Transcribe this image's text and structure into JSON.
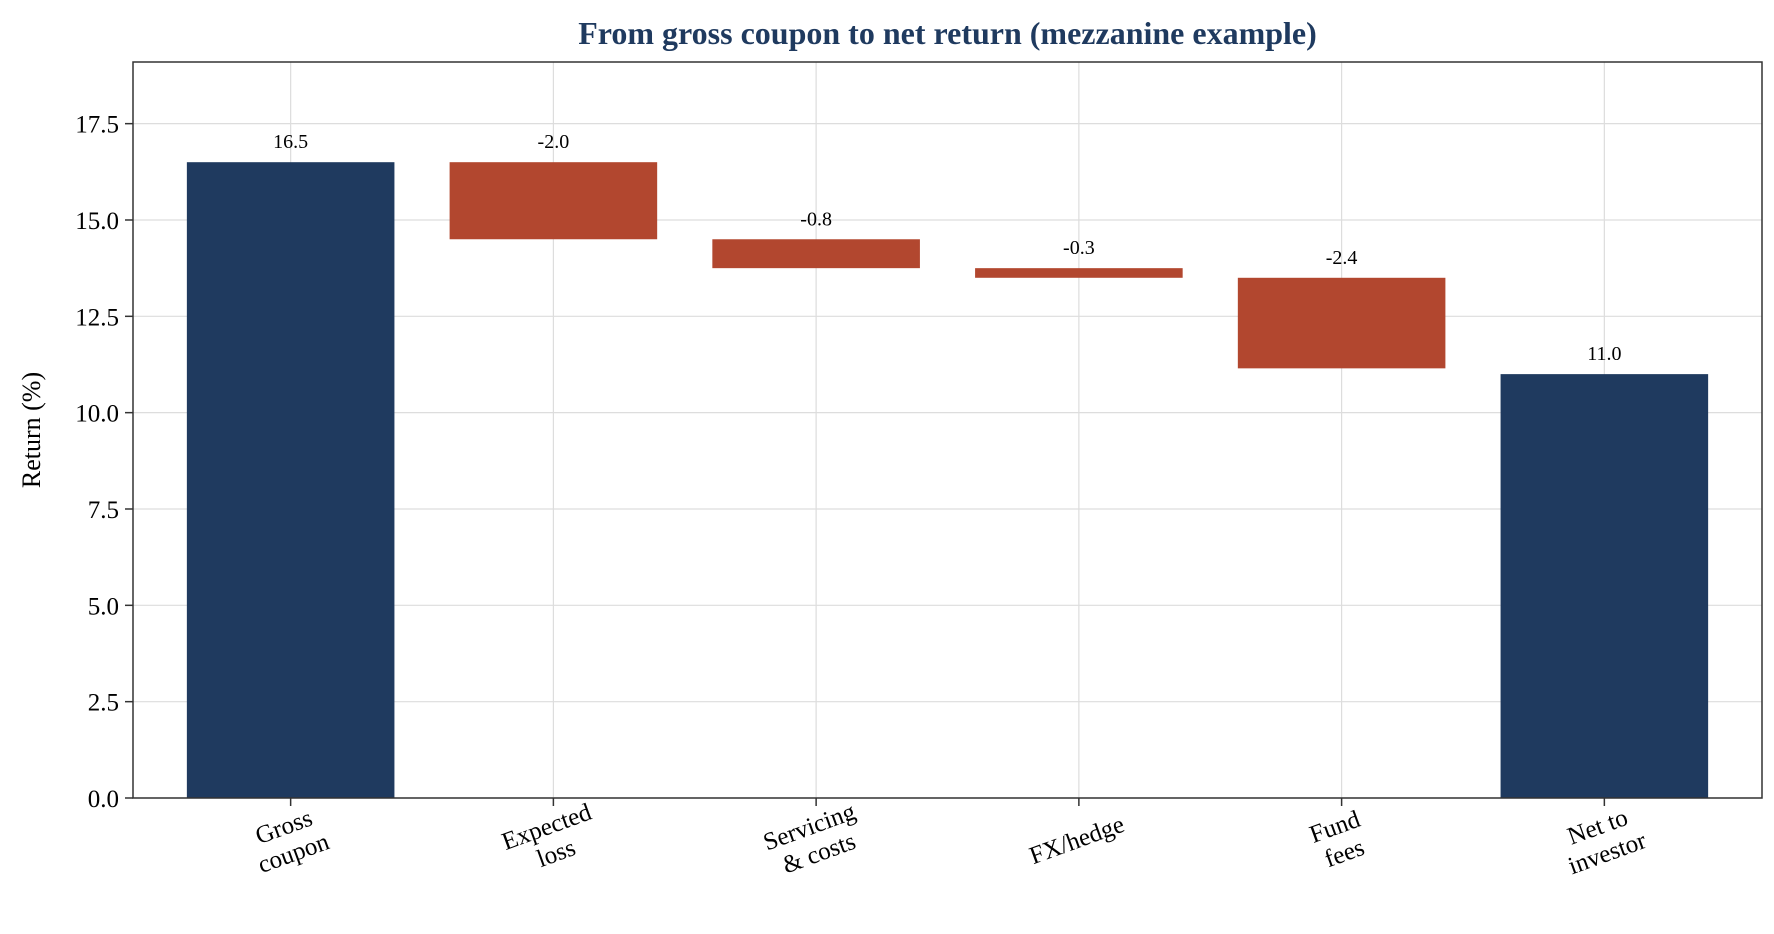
{
  "chart_data": {
    "type": "bar",
    "subtype": "waterfall",
    "title": "From gross coupon to net return (mezzanine example)",
    "xlabel": "",
    "ylabel": "Return (%)",
    "ylim": [
      0,
      19.1
    ],
    "yticks": [
      "0.0",
      "2.5",
      "5.0",
      "7.5",
      "10.0",
      "12.5",
      "15.0",
      "17.5"
    ],
    "grid": true,
    "categories": [
      [
        "Gross",
        "coupon"
      ],
      [
        "Expected",
        "loss"
      ],
      [
        "Servicing",
        "& costs"
      ],
      [
        "FX/hedge"
      ],
      [
        "Fund",
        "fees"
      ],
      [
        "Net to",
        "investor"
      ]
    ],
    "steps": [
      {
        "kind": "total",
        "value": 16.5,
        "label": "16.5"
      },
      {
        "kind": "delta",
        "value": -2.0,
        "label": "-2.0"
      },
      {
        "kind": "delta",
        "value": -0.75,
        "label": "-0.8"
      },
      {
        "kind": "delta",
        "value": -0.25,
        "label": "-0.3"
      },
      {
        "kind": "delta",
        "value": -2.35,
        "label": "-2.4"
      },
      {
        "kind": "total",
        "value": 11.0,
        "label": "11.0"
      }
    ],
    "colors": {
      "total": "#1f3a5f",
      "delta": "#b2472f",
      "title": "#1f3a5f",
      "grid": "#dddddd",
      "axis": "#333333"
    }
  }
}
